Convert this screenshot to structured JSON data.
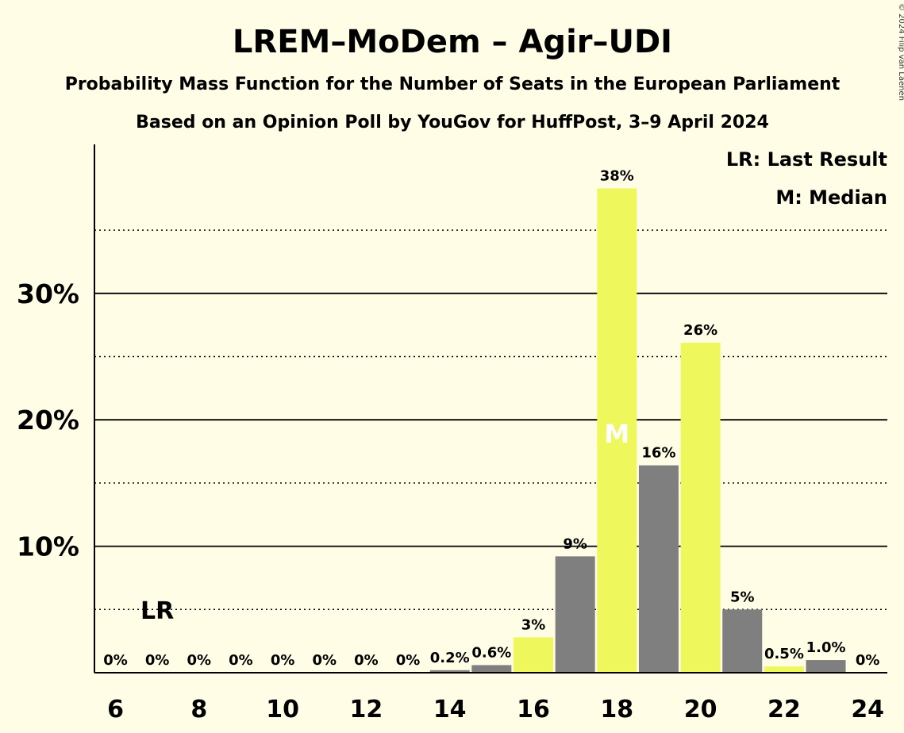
{
  "chart_data": {
    "type": "bar",
    "title": "LREM–MoDem – Agir–UDI",
    "subtitle": "Probability Mass Function for the Number of Seats in the European Parliament",
    "subtitle2": "Based on an Opinion Poll by YouGov for HuffPost, 3–9 April 2024",
    "legend_lines": [
      "LR: Last Result",
      "M: Median"
    ],
    "legend_placement": "top-right",
    "copyright": "© 2024 Filip van Laenen",
    "x": [
      6,
      7,
      8,
      9,
      10,
      11,
      12,
      13,
      14,
      15,
      16,
      17,
      18,
      19,
      20,
      21,
      22,
      23,
      24
    ],
    "values": [
      0,
      0,
      0,
      0,
      0,
      0,
      0,
      0,
      0.2,
      0.6,
      2.8,
      9.2,
      38.3,
      16.4,
      26.1,
      5.0,
      0.5,
      1.0,
      0
    ],
    "labels": [
      "0%",
      "0%",
      "0%",
      "0%",
      "0%",
      "0%",
      "0%",
      "0%",
      "0.2%",
      "0.6%",
      "3%",
      "9%",
      "38%",
      "16%",
      "26%",
      "5%",
      "0.5%",
      "1.0%",
      "0%"
    ],
    "x_tick_labels": [
      "6",
      "8",
      "10",
      "12",
      "14",
      "16",
      "18",
      "20",
      "22",
      "24"
    ],
    "y_ticks": [
      10,
      20,
      30
    ],
    "y_tick_labels": [
      "10%",
      "20%",
      "30%"
    ],
    "y_minor_ticks": [
      5,
      15,
      25,
      35
    ],
    "ylim": [
      0,
      41.7
    ],
    "last_result_seat": 7,
    "last_result_label": "LR",
    "median_seat": 18,
    "median_label": "M",
    "colors": {
      "highlight": "#eef75c",
      "other": "#7f7f7f",
      "background": "#fffde6"
    },
    "highlight_seats": [
      16,
      18,
      20,
      22
    ]
  }
}
